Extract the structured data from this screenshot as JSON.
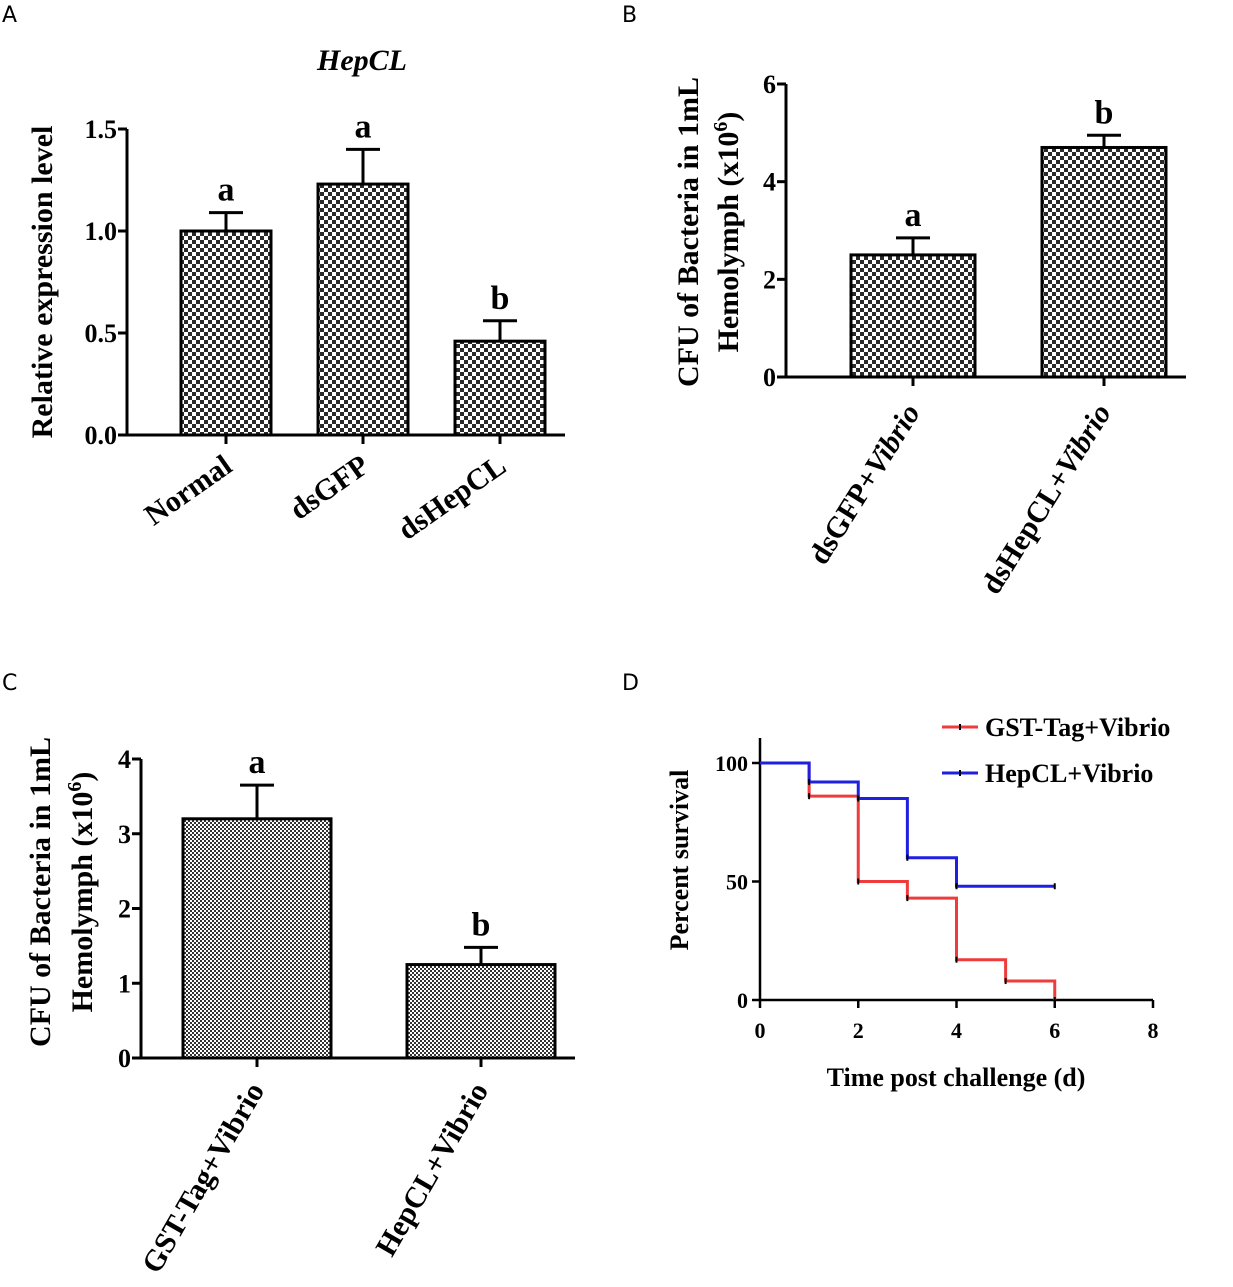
{
  "panels": {
    "A": {
      "letter": "A"
    },
    "B": {
      "letter": "B"
    },
    "C": {
      "letter": "C"
    },
    "D": {
      "letter": "D"
    }
  },
  "chart_data": [
    {
      "id": "A",
      "type": "bar",
      "title": "HepCL",
      "xlabel": "",
      "ylabel": "Relative expression level",
      "categories": [
        "Normal",
        "dsGFP",
        "dsHepCL"
      ],
      "values": [
        1.0,
        1.23,
        0.46
      ],
      "errors": [
        0.09,
        0.17,
        0.1
      ],
      "significance": [
        "a",
        "a",
        "b"
      ],
      "ylim": [
        0,
        1.5
      ],
      "yticks": [
        0.0,
        0.5,
        1.0,
        1.5
      ],
      "ytick_labels": [
        "0.0",
        "0.5",
        "1.0",
        "1.5"
      ],
      "fill": "checkerboard"
    },
    {
      "id": "B",
      "type": "bar",
      "title": "",
      "xlabel": "",
      "ylabel_line1": "CFU of Bacteria in 1mL",
      "ylabel_line2": "Hemolymph (x10",
      "ylabel_exponent": "6",
      "ylabel_close": ")",
      "categories": [
        {
          "prefix": "dsGFP+",
          "italic": "Vibrio"
        },
        {
          "prefix": "dsHepCL+",
          "italic": "Vibrio"
        }
      ],
      "values": [
        2.5,
        4.7
      ],
      "errors": [
        0.35,
        0.25
      ],
      "significance": [
        "a",
        "b"
      ],
      "ylim": [
        0,
        6
      ],
      "yticks": [
        0,
        2,
        4,
        6
      ],
      "ytick_labels": [
        "0",
        "2",
        "4",
        "6"
      ],
      "fill": "checkerboard"
    },
    {
      "id": "C",
      "type": "bar",
      "title": "",
      "xlabel": "",
      "ylabel_line1": "CFU of Bacteria in 1mL",
      "ylabel_line2": "Hemolymph (x10",
      "ylabel_exponent": "6",
      "ylabel_close": ")",
      "categories": [
        "GST-Tag+Vibrio",
        "HepCL+Vibrio"
      ],
      "values": [
        3.2,
        1.25
      ],
      "errors": [
        0.45,
        0.23
      ],
      "significance": [
        "a",
        "b"
      ],
      "ylim": [
        0,
        4
      ],
      "yticks": [
        0,
        1,
        2,
        3,
        4
      ],
      "ytick_labels": [
        "0",
        "1",
        "2",
        "3",
        "4"
      ],
      "fill": "fine-checkerboard"
    },
    {
      "id": "D",
      "type": "line",
      "subtype": "survival-step",
      "xlabel": "Time post challenge (d)",
      "ylabel": "Percent survival",
      "xlim": [
        0,
        8
      ],
      "ylim": [
        0,
        110
      ],
      "xticks": [
        0,
        2,
        4,
        6,
        8
      ],
      "xtick_labels": [
        "0",
        "2",
        "4",
        "6",
        "8"
      ],
      "yticks": [
        0,
        50,
        100
      ],
      "ytick_labels": [
        "0",
        "50",
        "100"
      ],
      "legend_position": "top-right",
      "series": [
        {
          "name": "GST-Tag+Vibrio",
          "color": "#ee3b3b",
          "steps": [
            [
              0,
              100
            ],
            [
              1,
              86
            ],
            [
              2,
              50
            ],
            [
              3,
              43
            ],
            [
              4,
              17
            ],
            [
              5,
              8
            ],
            [
              6,
              0
            ]
          ]
        },
        {
          "name": "HepCL+Vibrio",
          "color": "#1f1fe0",
          "steps": [
            [
              0,
              100
            ],
            [
              1,
              92
            ],
            [
              2,
              85
            ],
            [
              3,
              60
            ],
            [
              4,
              48
            ],
            [
              6,
              48
            ]
          ]
        }
      ]
    }
  ]
}
